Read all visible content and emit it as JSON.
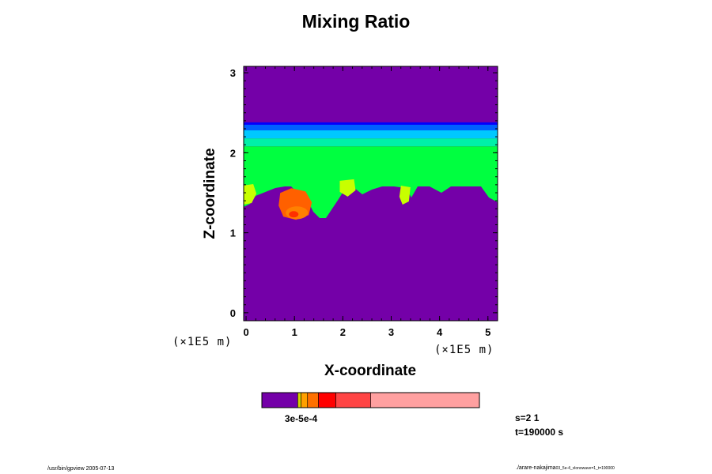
{
  "title": "Mixing Ratio",
  "footer_left": "/usr/bin/gpview 2005-07-13",
  "footer_right_main": "./arare-nakajima",
  "footer_right_small": "03_5e-4_vlonowave=1_t=190000",
  "status_lines": [
    "s=2 1",
    "t=190000 s"
  ],
  "chart_data": {
    "type": "heatmap",
    "title": "Mixing Ratio",
    "xlabel": "X-coordinate",
    "ylabel": "Z-coordinate",
    "x_unit": "(×1E5 m)",
    "z_unit": "(×1E5 m)",
    "xlim": [
      -0.05,
      5.2
    ],
    "ylim": [
      -0.1,
      3.08
    ],
    "x_ticks": [
      0,
      1,
      2,
      3,
      4,
      5
    ],
    "y_ticks": [
      0,
      1,
      2,
      3
    ],
    "x_tick_labels": [
      "0",
      "1",
      "2",
      "3",
      "4",
      "5"
    ],
    "y_tick_labels": [
      "0",
      "1",
      "2",
      "3"
    ],
    "background_color": "#7400a8",
    "layers": [
      {
        "name": "upper edge",
        "z_min": 2.35,
        "z_max": 2.38,
        "color": "#0000ff"
      },
      {
        "name": "blue band",
        "z_min": 2.28,
        "z_max": 2.35,
        "color": "#0060ff"
      },
      {
        "name": "cyan band",
        "z_min": 2.18,
        "z_max": 2.28,
        "color": "#00c8ff"
      },
      {
        "name": "aqua band",
        "z_min": 2.08,
        "z_max": 2.18,
        "color": "#00f0a8"
      },
      {
        "name": "green band",
        "z_min": 1.62,
        "z_max": 2.08,
        "color": "#00ff40"
      }
    ],
    "patches": [
      {
        "x": 0.05,
        "z": 1.45,
        "value": "5e-5",
        "color": "#c8ff00"
      },
      {
        "x": 1.0,
        "z": 1.3,
        "value": "2e-4",
        "color": "#ff6000"
      },
      {
        "x": 2.1,
        "z": 1.55,
        "value": "5e-5",
        "color": "#c8ff00"
      },
      {
        "x": 3.3,
        "z": 1.45,
        "value": "5e-5",
        "color": "#c8ff00"
      }
    ],
    "colorbar": {
      "colors": [
        "#7400a8",
        "#d4d400",
        "#ffa000",
        "#ff7000",
        "#ff0000",
        "#ff4444",
        "#ffa0a0"
      ],
      "fractions": [
        0.165,
        0.015,
        0.03,
        0.05,
        0.08,
        0.16,
        0.5
      ],
      "labels": [
        "3e-5",
        "5e-5",
        "2e-4"
      ],
      "label_overlay": "3e-5e-4"
    }
  }
}
